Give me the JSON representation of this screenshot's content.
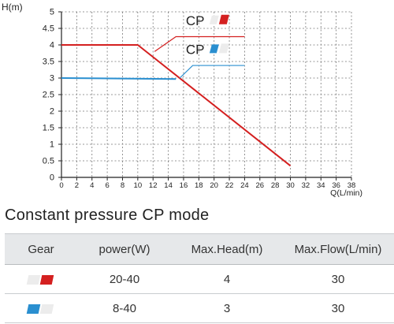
{
  "chart_data": {
    "type": "line",
    "title": "",
    "ylabel": "H(m)",
    "xlabel": "Q(L/min)",
    "x_ticks": [
      "0",
      "2",
      "4",
      "6",
      "8",
      "10",
      "12",
      "14",
      "16",
      "18",
      "20",
      "22",
      "24",
      "26",
      "28",
      "30",
      "32",
      "34",
      "36",
      "38"
    ],
    "y_ticks": [
      "0",
      "0.5",
      "1",
      "1.5",
      "2",
      "2.5",
      "3",
      "3.5",
      "4",
      "4.5",
      "5"
    ],
    "xlim": [
      0,
      38
    ],
    "ylim": [
      0,
      5
    ],
    "grid": true,
    "series": [
      {
        "name": "CP",
        "mode": "high",
        "color": "#d42020",
        "points": [
          [
            0,
            4
          ],
          [
            10,
            4
          ],
          [
            30,
            0.35
          ]
        ]
      },
      {
        "name": "CP",
        "mode": "low",
        "color": "#2a8fd0",
        "points": [
          [
            0,
            3
          ],
          [
            15,
            2.97
          ]
        ]
      }
    ]
  },
  "section_title": "Constant pressure CP mode",
  "table": {
    "headers": {
      "gear": "Gear",
      "power": "power(W)",
      "max_head": "Max.Head(m)",
      "max_flow": "Max.Flow(L/min)"
    },
    "rows": [
      {
        "gear_icon": "gear-high-icon",
        "active_color": "#d42020",
        "inactive_color": "#ececec",
        "power": "20-40",
        "max_head": "4",
        "max_flow": "30"
      },
      {
        "gear_icon": "gear-low-icon",
        "active_color": "#2a8fd0",
        "inactive_color": "#ececec",
        "power": "8-40",
        "max_head": "3",
        "max_flow": "30"
      }
    ]
  }
}
